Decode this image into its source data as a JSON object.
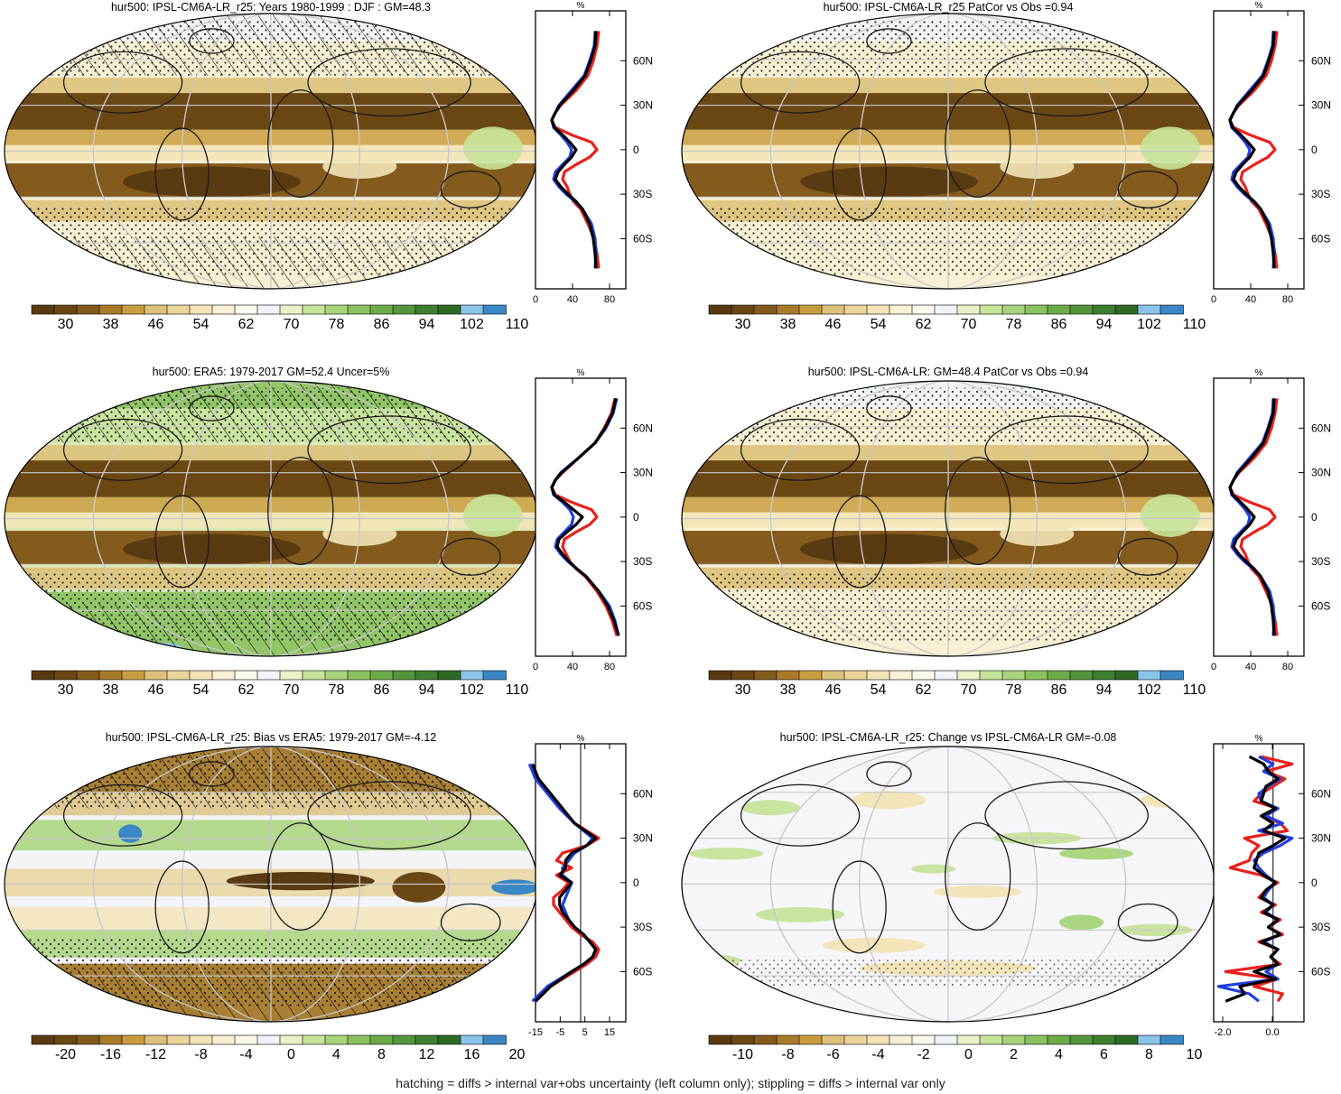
{
  "palettes": {
    "abs": [
      "#5a3a10",
      "#6b4714",
      "#845a1d",
      "#a87a2a",
      "#c99d3f",
      "#dcc17a",
      "#ead49a",
      "#f2e4b6",
      "#f7f0d4",
      "#fbf8ec",
      "#f0f4fa",
      "#e8f1c8",
      "#c7e39a",
      "#a8d37a",
      "#89c15e",
      "#6cab48",
      "#55953b",
      "#3f7f30",
      "#2f6a25",
      "#8ac4ea",
      "#3a87c6"
    ],
    "bias": [
      "#5a3a10",
      "#6b4714",
      "#845a1d",
      "#a87a2a",
      "#c99d3f",
      "#dcc17a",
      "#ead49a",
      "#f2e4b6",
      "#f7f0d4",
      "#fbf8ec",
      "#f0f4fa",
      "#e8f1c8",
      "#c7e39a",
      "#a8d37a",
      "#89c15e",
      "#6cab48",
      "#55953b",
      "#3f7f30",
      "#2f6a25",
      "#8ac4ea",
      "#3a87c6"
    ],
    "change": [
      "#5a3a10",
      "#6b4714",
      "#845a1d",
      "#a87a2a",
      "#c99d3f",
      "#dcc17a",
      "#ead49a",
      "#f2e4b6",
      "#f7f0d4",
      "#fbf8ec",
      "#f0f4fa",
      "#e8f1c8",
      "#c7e39a",
      "#a8d37a",
      "#89c15e",
      "#6cab48",
      "#55953b",
      "#3f7f30",
      "#2f6a25",
      "#8ac4ea",
      "#3a87c6"
    ]
  },
  "colors": {
    "model": "#e8201c",
    "obs": "#1f3fe0",
    "ens": "#000000",
    "ocean_base": "#f3ede0"
  },
  "chart_data": [
    {
      "type": "heatmap",
      "title": "hur500: IPSL-CM6A-LR_r25: Years 1980-1999 : DJF : GM=48.3",
      "map_pattern": "abs",
      "hatching": true,
      "stippling": true,
      "colorbar": {
        "palette": "abs",
        "tick_labels": [
          "30",
          "38",
          "46",
          "54",
          "62",
          "70",
          "78",
          "86",
          "94",
          "102",
          "110"
        ]
      },
      "profile": {
        "xlabel": "%",
        "xticks": [
          "0",
          "40",
          "80"
        ],
        "xlim": [
          0,
          100
        ],
        "yticks": [
          "60N",
          "30N",
          "0",
          "30S",
          "60S"
        ],
        "lat": [
          80,
          70,
          60,
          50,
          40,
          30,
          25,
          20,
          15,
          10,
          5,
          0,
          -5,
          -10,
          -15,
          -20,
          -25,
          -30,
          -35,
          -40,
          -50,
          -60,
          -70,
          -80
        ],
        "series": [
          {
            "name": "model",
            "values": [
              70,
              68,
              64,
              58,
              45,
              28,
              22,
              18,
              22,
              40,
              62,
              68,
              60,
              45,
              32,
              30,
              35,
              38,
              42,
              50,
              58,
              65,
              68,
              70
            ]
          },
          {
            "name": "obs",
            "values": [
              66,
              65,
              60,
              54,
              40,
              26,
              22,
              18,
              20,
              28,
              35,
              40,
              38,
              30,
              22,
              20,
              26,
              34,
              44,
              52,
              62,
              66,
              67,
              66
            ]
          },
          {
            "name": "ens",
            "values": [
              67,
              66,
              61,
              55,
              42,
              27,
              22,
              18,
              21,
              30,
              38,
              45,
              40,
              32,
              25,
              22,
              28,
              36,
              45,
              52,
              60,
              64,
              66,
              67
            ]
          }
        ]
      }
    },
    {
      "type": "heatmap",
      "title": "hur500: IPSL-CM6A-LR_r25 PatCor vs Obs =0.94",
      "map_pattern": "abs",
      "hatching": false,
      "stippling": true,
      "colorbar": {
        "palette": "abs",
        "tick_labels": [
          "30",
          "38",
          "46",
          "54",
          "62",
          "70",
          "78",
          "86",
          "94",
          "102",
          "110"
        ]
      },
      "profile": {
        "xlabel": "%",
        "xticks": [
          "0",
          "40",
          "80"
        ],
        "xlim": [
          0,
          100
        ],
        "yticks": [
          "60N",
          "30N",
          "0",
          "30S",
          "60S"
        ],
        "lat": [
          80,
          70,
          60,
          50,
          40,
          30,
          25,
          20,
          15,
          10,
          5,
          0,
          -5,
          -10,
          -15,
          -20,
          -25,
          -30,
          -35,
          -40,
          -50,
          -60,
          -70,
          -80
        ],
        "series": [
          {
            "name": "model",
            "values": [
              70,
              68,
              64,
              58,
              45,
              28,
              22,
              18,
              22,
              40,
              62,
              68,
              60,
              45,
              32,
              30,
              35,
              38,
              42,
              50,
              58,
              65,
              68,
              70
            ]
          },
          {
            "name": "obs",
            "values": [
              66,
              65,
              60,
              54,
              40,
              26,
              22,
              18,
              20,
              28,
              35,
              40,
              38,
              30,
              22,
              20,
              26,
              34,
              44,
              52,
              62,
              66,
              67,
              66
            ]
          },
          {
            "name": "ens",
            "values": [
              67,
              66,
              61,
              55,
              42,
              27,
              22,
              18,
              21,
              30,
              38,
              45,
              40,
              32,
              25,
              22,
              28,
              36,
              45,
              52,
              60,
              64,
              66,
              67
            ]
          }
        ]
      }
    },
    {
      "type": "heatmap",
      "title": "hur500: ERA5: 1979-2017 GM=52.4 Uncer=5%",
      "map_pattern": "era",
      "hatching": true,
      "stippling": true,
      "colorbar": {
        "palette": "abs",
        "tick_labels": [
          "30",
          "38",
          "46",
          "54",
          "62",
          "70",
          "78",
          "86",
          "94",
          "102",
          "110"
        ]
      },
      "profile": {
        "xlabel": "%",
        "xticks": [
          "0",
          "40",
          "80"
        ],
        "xlim": [
          0,
          100
        ],
        "yticks": [
          "60N",
          "30N",
          "0",
          "30S",
          "60S"
        ],
        "lat": [
          80,
          70,
          60,
          50,
          40,
          30,
          25,
          20,
          15,
          10,
          5,
          0,
          -5,
          -10,
          -15,
          -20,
          -25,
          -30,
          -35,
          -40,
          -50,
          -60,
          -70,
          -80
        ],
        "series": [
          {
            "name": "model",
            "values": [
              88,
              84,
              76,
              66,
              48,
              30,
              22,
              18,
              22,
              40,
              62,
              68,
              60,
              45,
              32,
              30,
              34,
              38,
              45,
              55,
              68,
              78,
              85,
              90
            ]
          },
          {
            "name": "obs",
            "values": [
              90,
              86,
              78,
              66,
              48,
              28,
              22,
              18,
              20,
              30,
              38,
              42,
              40,
              32,
              24,
              22,
              28,
              36,
              46,
              56,
              70,
              82,
              88,
              92
            ]
          },
          {
            "name": "ens",
            "values": [
              89,
              85,
              77,
              66,
              48,
              29,
              22,
              18,
              21,
              32,
              42,
              52,
              45,
              35,
              26,
              24,
              30,
              37,
              46,
              56,
              70,
              80,
              87,
              92
            ]
          }
        ]
      }
    },
    {
      "type": "heatmap",
      "title": "hur500: IPSL-CM6A-LR: GM=48.4 PatCor vs Obs =0.94",
      "map_pattern": "abs",
      "hatching": false,
      "stippling": true,
      "colorbar": {
        "palette": "abs",
        "tick_labels": [
          "30",
          "38",
          "46",
          "54",
          "62",
          "70",
          "78",
          "86",
          "94",
          "102",
          "110"
        ]
      },
      "profile": {
        "xlabel": "%",
        "xticks": [
          "0",
          "40",
          "80"
        ],
        "xlim": [
          0,
          100
        ],
        "yticks": [
          "60N",
          "30N",
          "0",
          "30S",
          "60S"
        ],
        "lat": [
          80,
          70,
          60,
          50,
          40,
          30,
          25,
          20,
          15,
          10,
          5,
          0,
          -5,
          -10,
          -15,
          -20,
          -25,
          -30,
          -35,
          -40,
          -50,
          -60,
          -70,
          -80
        ],
        "series": [
          {
            "name": "model",
            "values": [
              70,
              68,
              64,
              58,
              45,
              28,
              22,
              18,
              22,
              40,
              62,
              68,
              60,
              45,
              32,
              30,
              35,
              38,
              42,
              50,
              58,
              65,
              68,
              70
            ]
          },
          {
            "name": "obs",
            "values": [
              66,
              65,
              60,
              54,
              40,
              26,
              22,
              18,
              20,
              28,
              35,
              40,
              38,
              30,
              22,
              20,
              26,
              34,
              44,
              52,
              62,
              66,
              67,
              66
            ]
          },
          {
            "name": "ens",
            "values": [
              67,
              66,
              61,
              55,
              42,
              27,
              22,
              18,
              21,
              30,
              38,
              45,
              40,
              32,
              25,
              22,
              28,
              36,
              45,
              52,
              60,
              64,
              66,
              67
            ]
          }
        ]
      }
    },
    {
      "type": "heatmap",
      "title": "hur500: IPSL-CM6A-LR_r25: Bias vs ERA5: 1979-2017 GM=-4.12",
      "map_pattern": "bias",
      "hatching": true,
      "stippling": true,
      "colorbar": {
        "palette": "bias",
        "tick_labels": [
          "-20",
          "-16",
          "-12",
          "-8",
          "-4",
          "0",
          "4",
          "8",
          "12",
          "16",
          "20"
        ]
      },
      "profile": {
        "xlabel": "%",
        "xticks": [
          "-15",
          "-5",
          "5",
          "15"
        ],
        "xlim": [
          -15,
          15
        ],
        "zero_line": 0,
        "yticks": [
          "60N",
          "30N",
          "0",
          "30S",
          "60S"
        ],
        "lat": [
          80,
          70,
          60,
          50,
          40,
          30,
          25,
          20,
          15,
          10,
          5,
          0,
          -5,
          -10,
          -15,
          -20,
          -25,
          -30,
          -35,
          -40,
          -45,
          -50,
          -55,
          -60,
          -70,
          -80
        ],
        "series": [
          {
            "name": "model",
            "values": [
              -16,
              -14,
              -10,
              -6,
              -2,
              6,
              2,
              -6,
              -8,
              -3,
              -8,
              -4,
              -6,
              -9,
              -9,
              -7,
              -5,
              -3,
              0,
              4,
              6,
              5,
              2,
              -2,
              -10,
              -15
            ]
          },
          {
            "name": "obs",
            "values": [
              -17,
              -15,
              -11,
              -7,
              -2,
              4,
              2,
              -2,
              -4,
              -6,
              -6,
              -3,
              -4,
              -5,
              -6,
              -5,
              -4,
              -2,
              1,
              3,
              5,
              4,
              1,
              -3,
              -11,
              -16
            ]
          },
          {
            "name": "ens",
            "values": [
              -16,
              -14,
              -10,
              -6,
              -2,
              5,
              2,
              -3,
              -5,
              -5,
              -7,
              -3,
              -5,
              -7,
              -7,
              -6,
              -4,
              -2,
              1,
              3,
              5,
              4,
              1,
              -3,
              -10,
              -15
            ]
          }
        ]
      }
    },
    {
      "type": "heatmap",
      "title": "hur500: IPSL-CM6A-LR_r25: Change vs IPSL-CM6A-LR GM=-0.08",
      "map_pattern": "change",
      "hatching": false,
      "stippling": true,
      "colorbar": {
        "palette": "change",
        "tick_labels": [
          "-10",
          "-8",
          "-6",
          "-4",
          "-2",
          "0",
          "2",
          "4",
          "6",
          "8",
          "10"
        ]
      },
      "profile": {
        "xlabel": "%",
        "xticks": [
          "-2.0",
          "0.0"
        ],
        "xlim": [
          -2.5,
          1.3
        ],
        "zero_line": 0,
        "yticks": [
          "60N",
          "30N",
          "0",
          "30S",
          "60S"
        ],
        "lat": [
          85,
          80,
          75,
          70,
          65,
          60,
          55,
          50,
          45,
          40,
          35,
          30,
          25,
          20,
          15,
          10,
          5,
          0,
          -5,
          -10,
          -15,
          -20,
          -25,
          -30,
          -35,
          -40,
          -45,
          -50,
          -55,
          -60,
          -65,
          -70,
          -75,
          -80
        ],
        "series": [
          {
            "name": "model",
            "values": [
              -0.5,
              0.8,
              -0.3,
              0.5,
              0.0,
              -0.5,
              -0.8,
              0.2,
              -0.4,
              0.3,
              0.6,
              -1.2,
              -0.6,
              -0.9,
              -1.0,
              -1.8,
              -0.5,
              0.2,
              -0.3,
              -0.6,
              0.1,
              -0.5,
              0.3,
              -0.2,
              0.4,
              -0.6,
              0.2,
              -0.1,
              0.3,
              -2.0,
              0.2,
              -0.8,
              0.4,
              0.2
            ]
          },
          {
            "name": "obs",
            "values": [
              -0.6,
              0.0,
              -0.4,
              0.3,
              -0.2,
              -0.6,
              -0.5,
              0.2,
              -0.3,
              0.4,
              -0.6,
              0.8,
              0.3,
              -0.4,
              -0.8,
              -0.6,
              -0.3,
              0.1,
              -0.2,
              -0.4,
              0.0,
              -0.3,
              0.2,
              -0.2,
              0.3,
              -0.4,
              0.2,
              -0.1,
              0.2,
              -0.3,
              0.2,
              -2.3,
              -1.0,
              -0.6
            ]
          },
          {
            "name": "ens",
            "values": [
              -1.0,
              -0.4,
              -0.2,
              0.2,
              -0.3,
              -0.4,
              -0.5,
              0.1,
              -0.5,
              0.0,
              -0.4,
              0.5,
              0.0,
              -0.6,
              -0.7,
              -0.8,
              -0.4,
              0.1,
              -0.3,
              -0.5,
              0.0,
              -0.4,
              0.2,
              -0.2,
              0.3,
              -0.5,
              0.2,
              -0.1,
              0.2,
              -0.8,
              0.1,
              -1.4,
              -1.2,
              -2.0
            ]
          }
        ]
      }
    }
  ],
  "footer": "hatching = diffs > internal var+obs uncertainty (left column only); stippling = diffs > internal var only"
}
